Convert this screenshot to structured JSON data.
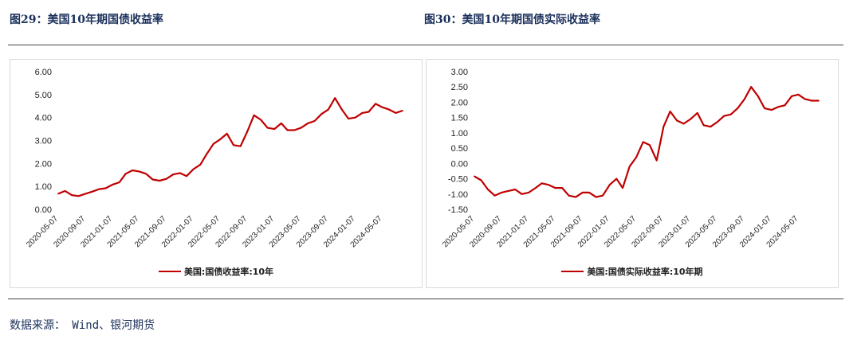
{
  "charts": {
    "left_title": "图29：美国10年期国债收益率",
    "right_title": "图30：美国10年期国债实际收益率"
  },
  "source": "数据来源： Wind、银河期货",
  "chart_data": [
    {
      "type": "line",
      "title": "图29：美国10年期国债收益率",
      "line_color": "#c00000",
      "ylim": [
        0,
        6
      ],
      "y_ticks": [
        "0.00",
        "1.00",
        "2.00",
        "3.00",
        "4.00",
        "5.00",
        "6.00"
      ],
      "x_ticks": [
        "2020-05-07",
        "2020-09-07",
        "2021-01-07",
        "2021-05-07",
        "2021-09-07",
        "2022-01-07",
        "2022-05-07",
        "2022-09-07",
        "2023-01-07",
        "2023-05-07",
        "2023-09-07",
        "2024-01-07",
        "2024-05-07"
      ],
      "grid": false,
      "legend_position": "bottom",
      "series": [
        {
          "name": "美国:国债收益率:10年",
          "x": [
            "2020-05-07",
            "2020-06-07",
            "2020-07-07",
            "2020-08-07",
            "2020-09-07",
            "2020-10-07",
            "2020-11-07",
            "2020-12-07",
            "2021-01-07",
            "2021-02-07",
            "2021-03-07",
            "2021-04-07",
            "2021-05-07",
            "2021-06-07",
            "2021-07-07",
            "2021-08-07",
            "2021-09-07",
            "2021-10-07",
            "2021-11-07",
            "2021-12-07",
            "2022-01-07",
            "2022-02-07",
            "2022-03-07",
            "2022-04-07",
            "2022-05-07",
            "2022-06-07",
            "2022-07-07",
            "2022-08-07",
            "2022-09-07",
            "2022-10-07",
            "2022-11-07",
            "2022-12-07",
            "2023-01-07",
            "2023-02-07",
            "2023-03-07",
            "2023-04-07",
            "2023-05-07",
            "2023-06-07",
            "2023-07-07",
            "2023-08-07",
            "2023-09-07",
            "2023-10-07",
            "2023-11-07",
            "2023-12-07",
            "2024-01-07",
            "2024-02-07",
            "2024-03-07",
            "2024-04-07",
            "2024-05-07",
            "2024-06-07",
            "2024-07-07",
            "2024-08-07"
          ],
          "values": [
            0.68,
            0.8,
            0.62,
            0.58,
            0.68,
            0.77,
            0.88,
            0.92,
            1.08,
            1.18,
            1.55,
            1.7,
            1.65,
            1.55,
            1.3,
            1.25,
            1.33,
            1.52,
            1.58,
            1.45,
            1.75,
            1.95,
            2.4,
            2.85,
            3.05,
            3.3,
            2.8,
            2.75,
            3.4,
            4.1,
            3.9,
            3.55,
            3.5,
            3.75,
            3.45,
            3.45,
            3.55,
            3.75,
            3.85,
            4.15,
            4.35,
            4.85,
            4.35,
            3.95,
            4.0,
            4.2,
            4.25,
            4.6,
            4.45,
            4.35,
            4.2,
            4.3
          ]
        }
      ]
    },
    {
      "type": "line",
      "title": "图30：美国10年期国债实际收益率",
      "line_color": "#c00000",
      "ylim": [
        -1.5,
        3
      ],
      "y_ticks": [
        "-1.50",
        "-1.00",
        "-0.50",
        "0.00",
        "0.50",
        "1.00",
        "1.50",
        "2.00",
        "2.50",
        "3.00"
      ],
      "x_ticks": [
        "2020-05-07",
        "2020-09-07",
        "2021-01-07",
        "2021-05-07",
        "2021-09-07",
        "2022-01-07",
        "2022-05-07",
        "2022-09-07",
        "2023-01-07",
        "2023-05-07",
        "2023-09-07",
        "2024-01-07",
        "2024-05-07"
      ],
      "grid": false,
      "legend_position": "bottom",
      "series": [
        {
          "name": "美国:国债实际收益率:10年期",
          "x": [
            "2020-05-07",
            "2020-06-07",
            "2020-07-07",
            "2020-08-07",
            "2020-09-07",
            "2020-10-07",
            "2020-11-07",
            "2020-12-07",
            "2021-01-07",
            "2021-02-07",
            "2021-03-07",
            "2021-04-07",
            "2021-05-07",
            "2021-06-07",
            "2021-07-07",
            "2021-08-07",
            "2021-09-07",
            "2021-10-07",
            "2021-11-07",
            "2021-12-07",
            "2022-01-07",
            "2022-02-07",
            "2022-03-07",
            "2022-04-07",
            "2022-05-07",
            "2022-06-07",
            "2022-07-07",
            "2022-08-07",
            "2022-09-07",
            "2022-10-07",
            "2022-11-07",
            "2022-12-07",
            "2023-01-07",
            "2023-02-07",
            "2023-03-07",
            "2023-04-07",
            "2023-05-07",
            "2023-06-07",
            "2023-07-07",
            "2023-08-07",
            "2023-09-07",
            "2023-10-07",
            "2023-11-07",
            "2023-12-07",
            "2024-01-07",
            "2024-02-07",
            "2024-03-07",
            "2024-04-07",
            "2024-05-07",
            "2024-06-07",
            "2024-07-07",
            "2024-08-07"
          ],
          "values": [
            -0.42,
            -0.55,
            -0.85,
            -1.05,
            -0.95,
            -0.9,
            -0.85,
            -1.0,
            -0.95,
            -0.8,
            -0.65,
            -0.7,
            -0.8,
            -0.8,
            -1.05,
            -1.1,
            -0.95,
            -0.95,
            -1.1,
            -1.05,
            -0.7,
            -0.5,
            -0.8,
            -0.1,
            0.2,
            0.7,
            0.6,
            0.1,
            1.2,
            1.7,
            1.4,
            1.3,
            1.45,
            1.65,
            1.25,
            1.2,
            1.35,
            1.55,
            1.6,
            1.8,
            2.1,
            2.5,
            2.2,
            1.8,
            1.75,
            1.85,
            1.9,
            2.2,
            2.25,
            2.1,
            2.05,
            2.05
          ]
        }
      ]
    }
  ]
}
